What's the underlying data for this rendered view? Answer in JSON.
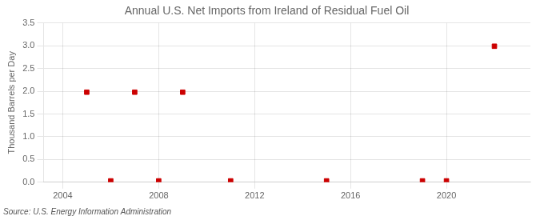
{
  "chart_data": {
    "type": "scatter",
    "title": "Annual U.S. Net Imports from Ireland of Residual Fuel Oil",
    "ylabel": "Thousand Barrels per Day",
    "annotations": [
      "Source: U.S. Energy Information Administration"
    ],
    "x": [
      2005,
      2006,
      2007,
      2008,
      2009,
      2011,
      2015,
      2019,
      2020,
      2022
    ],
    "values": [
      1.98,
      0.03,
      1.98,
      0.03,
      1.98,
      0.03,
      0.03,
      0.03,
      0.03,
      2.99
    ],
    "color": "#cc0000",
    "marker": "square",
    "xlim": [
      2003.2,
      2023.5
    ],
    "xticks": [
      2004,
      2008,
      2012,
      2016,
      2020
    ],
    "ylim": [
      0.0,
      3.5
    ],
    "yticks": [
      {
        "value": 0,
        "label": "0.0"
      },
      0.5,
      {
        "value": 1,
        "label": "1.0"
      },
      1.5,
      {
        "value": 2,
        "label": "2.0"
      },
      2.5,
      {
        "value": 3,
        "label": "3.0"
      },
      3.5
    ],
    "grid": true,
    "legend": false
  }
}
